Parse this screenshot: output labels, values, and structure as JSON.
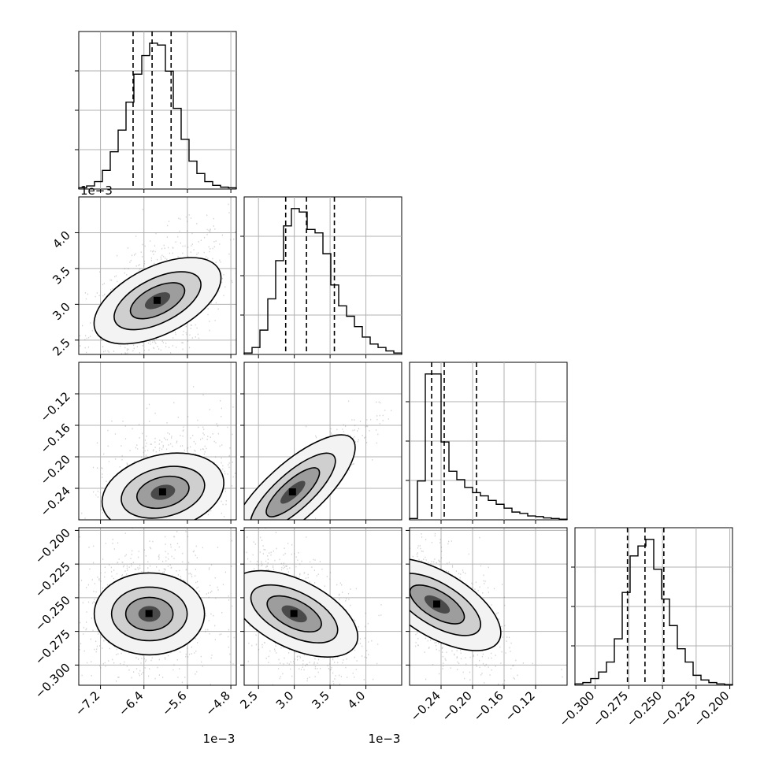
{
  "chart_data": {
    "type": "corner",
    "grid": true,
    "parameters": [
      {
        "range": [
          -7.6,
          -4.7
        ],
        "ticks": [
          -7.2,
          -6.4,
          -5.6,
          -4.8
        ],
        "tick_labels": [
          "−7.2",
          "−6.4",
          "−5.6",
          "−4.8"
        ],
        "offset_label": "1e−3",
        "quantiles": [
          -6.6,
          -6.25,
          -5.9
        ],
        "center": -6.2,
        "sd": 0.35
      },
      {
        "range": [
          2.3,
          4.5
        ],
        "ticks": [
          2.5,
          3.0,
          3.5,
          4.0
        ],
        "tick_labels": [
          "2.5",
          "3.0",
          "3.5",
          "4.0"
        ],
        "offset_label": "1e−3",
        "quantiles": [
          2.88,
          3.17,
          3.56
        ],
        "center": 3.15,
        "sd": 0.3
      },
      {
        "range": [
          -0.28,
          -0.08
        ],
        "ticks": [
          -0.24,
          -0.2,
          -0.16,
          -0.12
        ],
        "tick_labels": [
          "−0.24",
          "−0.20",
          "−0.16",
          "−0.12"
        ],
        "offset_label": "",
        "quantiles": [
          -0.252,
          -0.236,
          -0.195
        ],
        "center": -0.235,
        "sd": 0.025
      },
      {
        "range": [
          -0.315,
          -0.198
        ],
        "ticks": [
          -0.3,
          -0.275,
          -0.25,
          -0.225,
          -0.2
        ],
        "tick_labels": [
          "−0.300",
          "−0.275",
          "−0.250",
          "−0.225",
          "−0.200"
        ],
        "offset_label": "",
        "quantiles": [
          -0.276,
          -0.263,
          -0.249
        ],
        "center": -0.262,
        "sd": 0.012
      }
    ],
    "histograms": [
      {
        "param": 0,
        "edges_start": -7.6,
        "bin_width": 0.145,
        "counts": [
          2,
          5,
          12,
          30,
          60,
          95,
          140,
          185,
          215,
          235,
          232,
          190,
          130,
          80,
          45,
          25,
          12,
          6,
          3,
          2
        ]
      },
      {
        "param": 1,
        "edges_start": 2.3,
        "bin_width": 0.11,
        "counts": [
          2,
          10,
          35,
          80,
          135,
          185,
          210,
          205,
          180,
          175,
          145,
          100,
          70,
          55,
          40,
          25,
          15,
          10,
          5,
          2
        ]
      },
      {
        "param": 2,
        "edges_start": -0.28,
        "bin_width": 0.01,
        "counts": [
          2,
          60,
          225,
          225,
          120,
          75,
          62,
          50,
          42,
          37,
          30,
          24,
          18,
          12,
          10,
          6,
          5,
          3,
          2,
          1
        ]
      },
      {
        "param": 3,
        "edges_start": -0.315,
        "bin_width": 0.00585,
        "counts": [
          2,
          4,
          10,
          20,
          35,
          70,
          140,
          195,
          210,
          220,
          175,
          130,
          90,
          55,
          35,
          15,
          8,
          4,
          2,
          1
        ]
      }
    ],
    "pairs": [
      {
        "x_param": 0,
        "y_param": 1,
        "correlation": 0.5,
        "contour_levels": 3,
        "core": [
          -6.15,
          3.05
        ]
      },
      {
        "x_param": 0,
        "y_param": 2,
        "correlation": 0.25,
        "contour_levels": 3,
        "core": [
          -6.05,
          -0.245
        ]
      },
      {
        "x_param": 1,
        "y_param": 2,
        "correlation": 0.9,
        "contour_levels": 3,
        "core": [
          2.98,
          -0.245
        ]
      },
      {
        "x_param": 0,
        "y_param": 3,
        "correlation": 0.0,
        "contour_levels": 3,
        "core": [
          -6.3,
          -0.262
        ]
      },
      {
        "x_param": 1,
        "y_param": 3,
        "correlation": -0.5,
        "contour_levels": 3,
        "core": [
          3.0,
          -0.262
        ]
      },
      {
        "x_param": 2,
        "y_param": 3,
        "correlation": -0.6,
        "contour_levels": 3,
        "core": [
          -0.245,
          -0.255
        ]
      }
    ],
    "colors": {
      "line": "#000000",
      "scatter": "#7f7f7f",
      "grid": "#b0b0b0"
    }
  }
}
